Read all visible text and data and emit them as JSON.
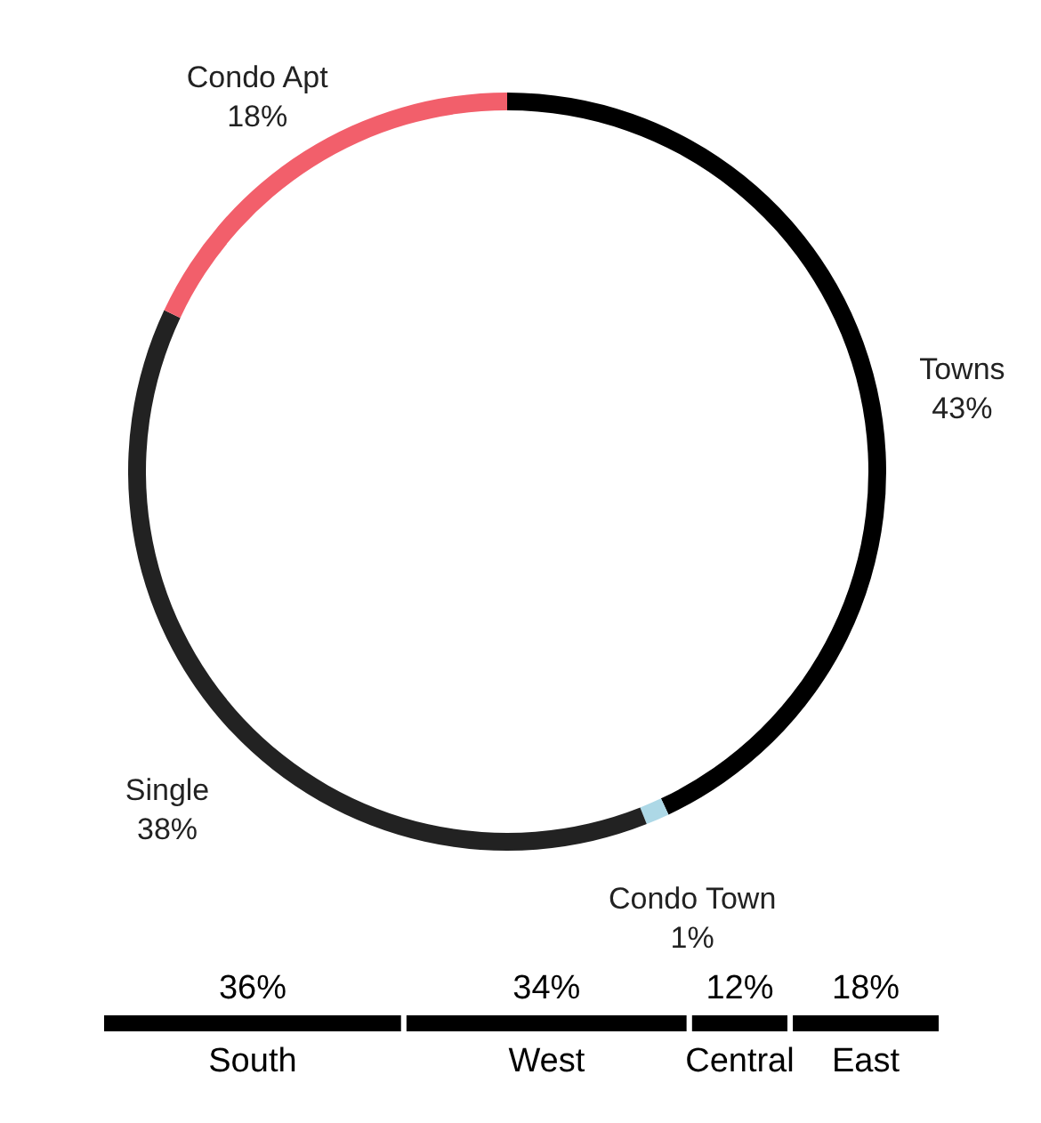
{
  "chart_data": [
    {
      "type": "donut",
      "categories": [
        "Towns",
        "Condo Town",
        "Single",
        "Condo Apt"
      ],
      "values": [
        43,
        1,
        38,
        18
      ],
      "colors": [
        "#000000",
        "#add8e6",
        "#222222",
        "#f25f6b"
      ],
      "value_labels": [
        "43%",
        "1%",
        "38%",
        "18%"
      ]
    },
    {
      "type": "bar",
      "orientation": "horizontal",
      "stacked": true,
      "categories": [
        null
      ],
      "xlim": [
        0,
        100
      ],
      "tick_labels": false,
      "series": [
        {
          "name": "South",
          "color": "#000000",
          "values": [
            36
          ],
          "value_labels": [
            "36%"
          ]
        },
        {
          "name": "West",
          "color": "#000000",
          "values": [
            34
          ],
          "value_labels": [
            "34%"
          ]
        },
        {
          "name": "Central",
          "color": "#000000",
          "values": [
            12
          ],
          "value_labels": [
            "12%"
          ]
        },
        {
          "name": "East",
          "color": "#000000",
          "values": [
            18
          ],
          "value_labels": [
            "18%"
          ]
        }
      ]
    }
  ]
}
